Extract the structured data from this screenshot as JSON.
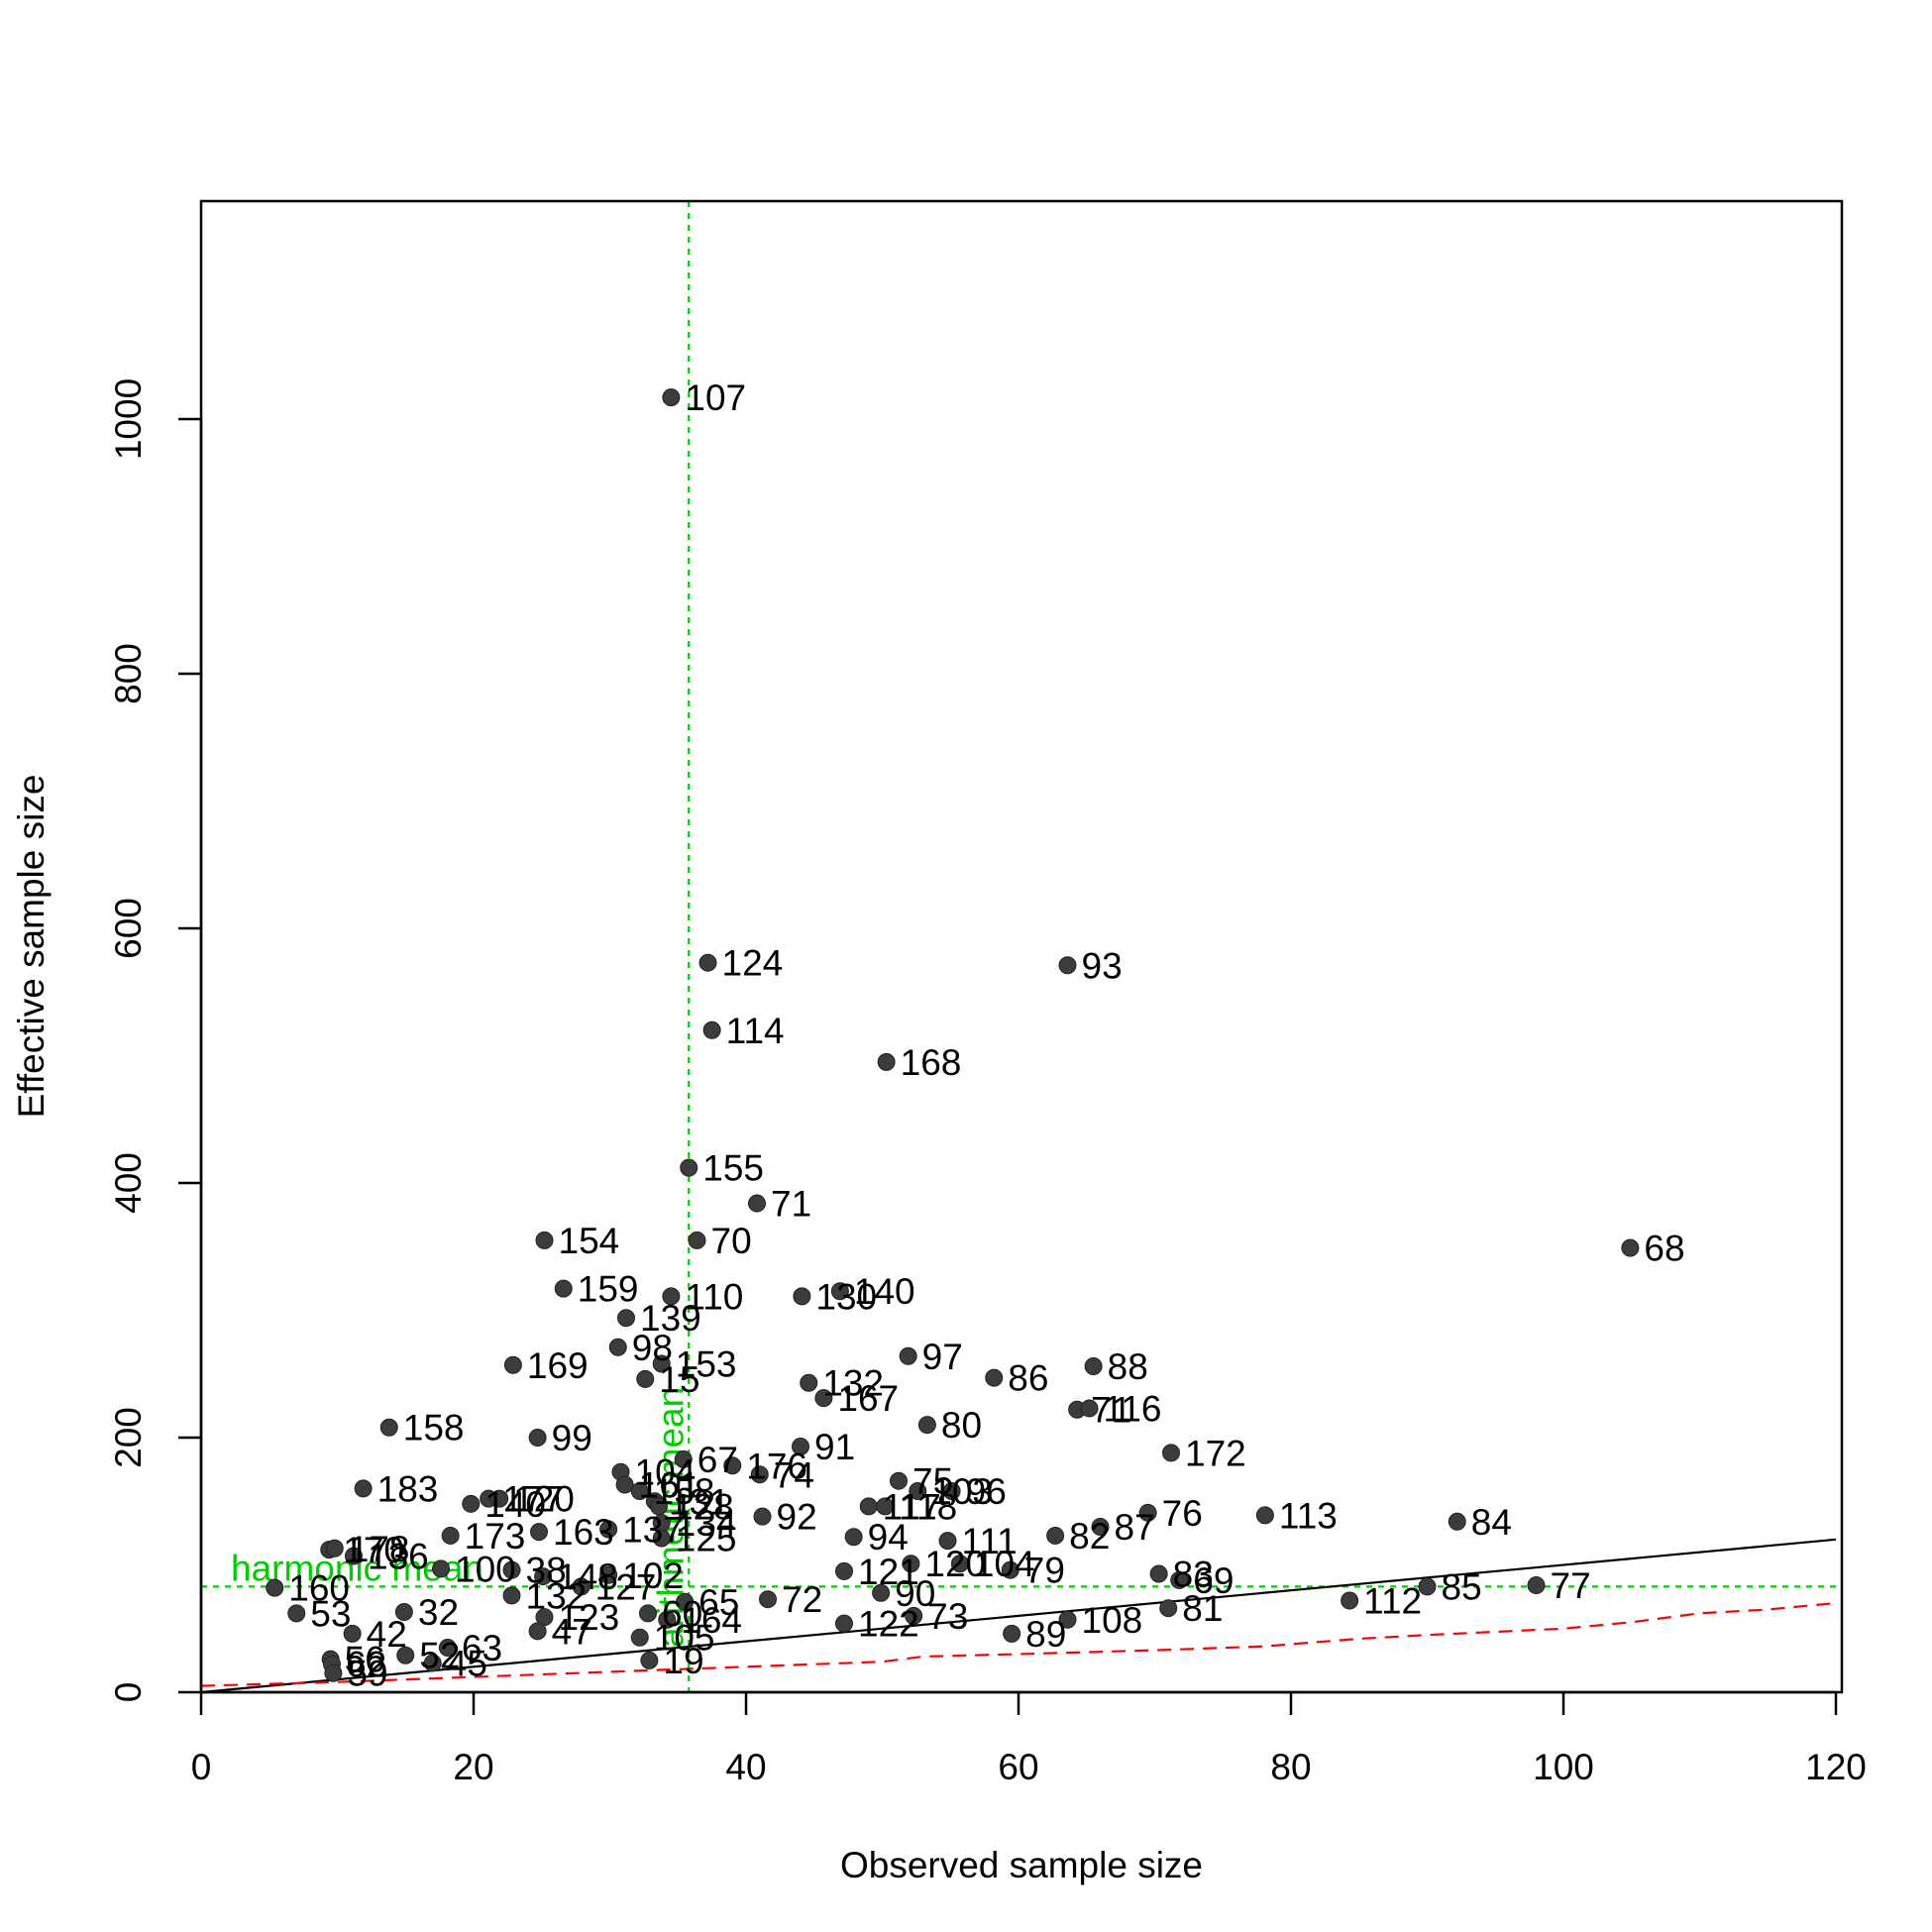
{
  "chart_data": {
    "type": "scatter",
    "title": "",
    "xlabel": "Observed sample size",
    "ylabel": "Effective sample size",
    "xlim": [
      0,
      120
    ],
    "ylim": [
      0,
      1160
    ],
    "xticks": [
      0,
      20,
      40,
      60,
      80,
      100,
      120
    ],
    "yticks": [
      0,
      200,
      400,
      600,
      800,
      1000
    ],
    "grid": false,
    "colors": {
      "points": "#3c3c3c",
      "identity_line": "#000000",
      "lower_bound": "#ff0000",
      "reference_lines": "#00cc00"
    },
    "reference_lines": {
      "arithmetic_mean_x": 35.8,
      "arithmetic_label": "arithmetic mean",
      "harmonic_mean_y": 83,
      "harmonic_label": "harmonic mean"
    },
    "identity_line": {
      "x": [
        0,
        120
      ],
      "y": [
        0,
        120
      ]
    },
    "lower_bound_curve": {
      "x": [
        0,
        10,
        20,
        30,
        40,
        50,
        53,
        60,
        70,
        78,
        85,
        90,
        100,
        105,
        110,
        115,
        120
      ],
      "y": [
        5,
        8,
        12,
        16,
        20,
        24,
        28,
        30,
        33,
        36,
        42,
        45,
        50,
        55,
        62,
        65,
        70
      ]
    },
    "points": [
      {
        "label": "107",
        "x": 34.5,
        "y": 1017
      },
      {
        "label": "124",
        "x": 37.2,
        "y": 573
      },
      {
        "label": "93",
        "x": 63.6,
        "y": 571
      },
      {
        "label": "114",
        "x": 37.5,
        "y": 520
      },
      {
        "label": "168",
        "x": 50.3,
        "y": 495
      },
      {
        "label": "155",
        "x": 35.8,
        "y": 412
      },
      {
        "label": "71",
        "x": 40.8,
        "y": 384
      },
      {
        "label": "154",
        "x": 25.2,
        "y": 355
      },
      {
        "label": "70",
        "x": 36.4,
        "y": 355
      },
      {
        "label": "68",
        "x": 104.9,
        "y": 349
      },
      {
        "label": "159",
        "x": 26.6,
        "y": 317
      },
      {
        "label": "110",
        "x": 34.5,
        "y": 311
      },
      {
        "label": "130",
        "x": 44.1,
        "y": 311
      },
      {
        "label": "140",
        "x": 46.9,
        "y": 315
      },
      {
        "label": "139",
        "x": 31.2,
        "y": 294
      },
      {
        "label": "98",
        "x": 30.6,
        "y": 271
      },
      {
        "label": "97",
        "x": 51.9,
        "y": 264
      },
      {
        "label": "169",
        "x": 22.9,
        "y": 257
      },
      {
        "label": "88",
        "x": 65.5,
        "y": 256
      },
      {
        "label": "153",
        "x": 33.8,
        "y": 258
      },
      {
        "label": "15",
        "x": 32.6,
        "y": 246
      },
      {
        "label": "86",
        "x": 58.2,
        "y": 247
      },
      {
        "label": "132",
        "x": 44.6,
        "y": 243
      },
      {
        "label": "167",
        "x": 45.7,
        "y": 231
      },
      {
        "label": "71",
        "x": 64.3,
        "y": 222
      },
      {
        "label": "116",
        "x": 65.2,
        "y": 223
      },
      {
        "label": "80",
        "x": 53.3,
        "y": 210
      },
      {
        "label": "158",
        "x": 13.8,
        "y": 208
      },
      {
        "label": "99",
        "x": 24.7,
        "y": 200
      },
      {
        "label": "91",
        "x": 44.0,
        "y": 193
      },
      {
        "label": "172",
        "x": 71.2,
        "y": 188
      },
      {
        "label": "67",
        "x": 35.4,
        "y": 183
      },
      {
        "label": "176",
        "x": 39.0,
        "y": 178
      },
      {
        "label": "74",
        "x": 41.0,
        "y": 171
      },
      {
        "label": "104",
        "x": 30.8,
        "y": 173
      },
      {
        "label": "183",
        "x": 11.9,
        "y": 160
      },
      {
        "label": "75",
        "x": 51.2,
        "y": 166
      },
      {
        "label": "103",
        "x": 52.6,
        "y": 158
      },
      {
        "label": "96",
        "x": 55.1,
        "y": 158
      },
      {
        "label": "161",
        "x": 31.1,
        "y": 163
      },
      {
        "label": "158",
        "x": 32.2,
        "y": 158
      },
      {
        "label": "177",
        "x": 21.1,
        "y": 152
      },
      {
        "label": "140",
        "x": 19.8,
        "y": 148
      },
      {
        "label": "120",
        "x": 21.9,
        "y": 152
      },
      {
        "label": "131",
        "x": 33.3,
        "y": 150
      },
      {
        "label": "128",
        "x": 33.6,
        "y": 146
      },
      {
        "label": "117",
        "x": 49.0,
        "y": 146
      },
      {
        "label": "118",
        "x": 50.2,
        "y": 146
      },
      {
        "label": "76",
        "x": 69.5,
        "y": 141
      },
      {
        "label": "113",
        "x": 78.1,
        "y": 139
      },
      {
        "label": "92",
        "x": 41.2,
        "y": 138
      },
      {
        "label": "84",
        "x": 92.2,
        "y": 134
      },
      {
        "label": "134",
        "x": 33.8,
        "y": 133
      },
      {
        "label": "87",
        "x": 66.0,
        "y": 130
      },
      {
        "label": "163",
        "x": 24.8,
        "y": 126
      },
      {
        "label": "173",
        "x": 18.3,
        "y": 123
      },
      {
        "label": "137",
        "x": 29.9,
        "y": 128
      },
      {
        "label": "82",
        "x": 62.7,
        "y": 123
      },
      {
        "label": "94",
        "x": 47.9,
        "y": 122
      },
      {
        "label": "125",
        "x": 33.8,
        "y": 121
      },
      {
        "label": "111",
        "x": 54.8,
        "y": 119
      },
      {
        "label": "170",
        "x": 9.4,
        "y": 112
      },
      {
        "label": "178",
        "x": 9.8,
        "y": 113
      },
      {
        "label": "136",
        "x": 11.2,
        "y": 107
      },
      {
        "label": "100",
        "x": 17.6,
        "y": 97
      },
      {
        "label": "120",
        "x": 52.1,
        "y": 101
      },
      {
        "label": "104",
        "x": 55.7,
        "y": 101
      },
      {
        "label": "79",
        "x": 59.4,
        "y": 96
      },
      {
        "label": "121",
        "x": 47.2,
        "y": 95
      },
      {
        "label": "38",
        "x": 22.8,
        "y": 96
      },
      {
        "label": "148",
        "x": 25.1,
        "y": 91
      },
      {
        "label": "102",
        "x": 29.9,
        "y": 92
      },
      {
        "label": "83",
        "x": 70.3,
        "y": 93
      },
      {
        "label": "69",
        "x": 71.8,
        "y": 88
      },
      {
        "label": "85",
        "x": 90.0,
        "y": 83
      },
      {
        "label": "77",
        "x": 98.0,
        "y": 84
      },
      {
        "label": "160",
        "x": 5.4,
        "y": 82
      },
      {
        "label": "127",
        "x": 27.9,
        "y": 83
      },
      {
        "label": "90",
        "x": 49.9,
        "y": 78
      },
      {
        "label": "132",
        "x": 22.8,
        "y": 76
      },
      {
        "label": "112",
        "x": 84.3,
        "y": 72
      },
      {
        "label": "72",
        "x": 41.6,
        "y": 73
      },
      {
        "label": "65",
        "x": 35.5,
        "y": 71
      },
      {
        "label": "81",
        "x": 71.0,
        "y": 66
      },
      {
        "label": "32",
        "x": 14.9,
        "y": 63
      },
      {
        "label": "53",
        "x": 7.0,
        "y": 62
      },
      {
        "label": "123",
        "x": 25.2,
        "y": 59
      },
      {
        "label": "73",
        "x": 52.3,
        "y": 60
      },
      {
        "label": "108",
        "x": 63.6,
        "y": 57
      },
      {
        "label": "60",
        "x": 32.8,
        "y": 62
      },
      {
        "label": "164",
        "x": 34.2,
        "y": 57
      },
      {
        "label": "122",
        "x": 47.2,
        "y": 54
      },
      {
        "label": "47",
        "x": 24.7,
        "y": 48
      },
      {
        "label": "42",
        "x": 11.1,
        "y": 46
      },
      {
        "label": "89",
        "x": 59.5,
        "y": 46
      },
      {
        "label": "105",
        "x": 32.2,
        "y": 43
      },
      {
        "label": "63",
        "x": 18.1,
        "y": 35
      },
      {
        "label": "19",
        "x": 32.9,
        "y": 25
      },
      {
        "label": "45",
        "x": 17.0,
        "y": 23
      },
      {
        "label": "56",
        "x": 9.5,
        "y": 26
      },
      {
        "label": "62",
        "x": 9.6,
        "y": 22
      },
      {
        "label": "59",
        "x": 9.7,
        "y": 15
      },
      {
        "label": "52",
        "x": 15.0,
        "y": 29
      }
    ]
  }
}
